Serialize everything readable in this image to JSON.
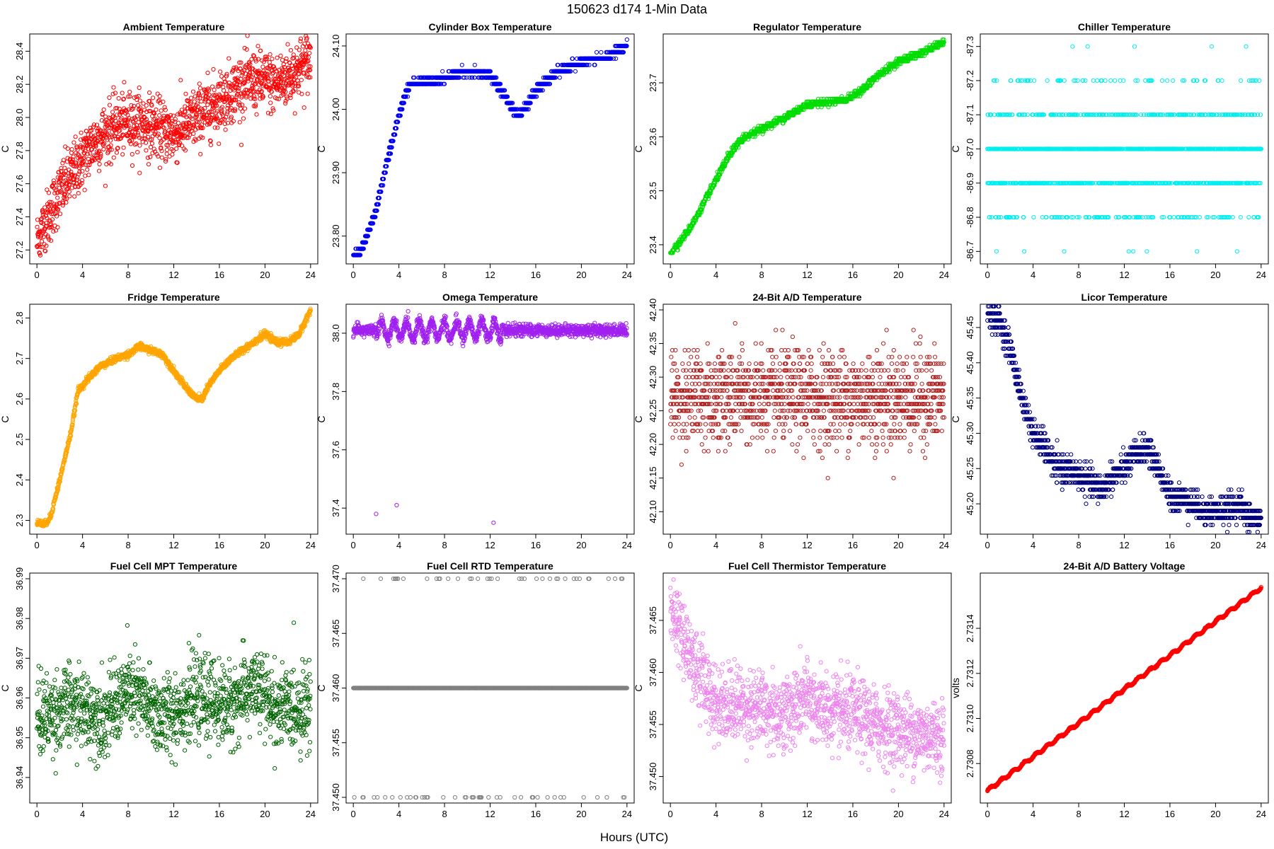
{
  "figure": {
    "title": "150623   d174   1-Min Data",
    "xlabel": "Hours (UTC)"
  },
  "chart_data": [
    {
      "type": "scatter",
      "title": "Ambient Temperature",
      "ylabel": "C",
      "color": "#ff0000",
      "xlim": [
        0,
        24
      ],
      "ylim": [
        27.15,
        28.47
      ],
      "xticks": [
        "0",
        "4",
        "8",
        "12",
        "16",
        "20",
        "24"
      ],
      "yticks": [
        "27.2",
        "27.4",
        "27.6",
        "27.8",
        "28.0",
        "28.2",
        "28.4"
      ],
      "trend": [
        [
          0,
          27.25
        ],
        [
          1,
          27.4
        ],
        [
          2,
          27.55
        ],
        [
          3,
          27.65
        ],
        [
          4,
          27.75
        ],
        [
          5,
          27.85
        ],
        [
          6,
          27.9
        ],
        [
          7,
          27.95
        ],
        [
          8,
          27.97
        ],
        [
          9,
          27.97
        ],
        [
          10,
          27.95
        ],
        [
          11,
          27.92
        ],
        [
          12,
          27.9
        ],
        [
          13,
          27.95
        ],
        [
          14,
          28.0
        ],
        [
          15,
          28.05
        ],
        [
          16,
          28.1
        ],
        [
          17,
          28.15
        ],
        [
          18,
          28.2
        ],
        [
          19,
          28.22
        ],
        [
          20,
          28.22
        ],
        [
          21,
          28.2
        ],
        [
          22,
          28.25
        ],
        [
          23,
          28.3
        ],
        [
          24,
          28.35
        ]
      ],
      "noise": 0.09
    },
    {
      "type": "scatter",
      "title": "Cylinder Box Temperature",
      "ylabel": "C",
      "color": "#0000ee",
      "xlim": [
        0,
        24
      ],
      "ylim": [
        23.765,
        24.11
      ],
      "xticks": [
        "0",
        "4",
        "8",
        "12",
        "16",
        "20",
        "24"
      ],
      "yticks": [
        "23.80",
        "23.90",
        "24.00",
        "24.10"
      ],
      "trend": [
        [
          0,
          23.77
        ],
        [
          0.5,
          23.775
        ],
        [
          1,
          23.79
        ],
        [
          2,
          23.84
        ],
        [
          3,
          23.92
        ],
        [
          4,
          23.99
        ],
        [
          4.5,
          24.02
        ],
        [
          5,
          24.04
        ],
        [
          7,
          24.045
        ],
        [
          8,
          24.05
        ],
        [
          10,
          24.06
        ],
        [
          12,
          24.055
        ],
        [
          13,
          24.03
        ],
        [
          14,
          24.0
        ],
        [
          14.5,
          23.99
        ],
        [
          15,
          24.0
        ],
        [
          16,
          24.03
        ],
        [
          18,
          24.06
        ],
        [
          20,
          24.075
        ],
        [
          22,
          24.08
        ],
        [
          23,
          24.09
        ],
        [
          24,
          24.1
        ]
      ],
      "noise": 0.003,
      "quantum": 0.01
    },
    {
      "type": "scatter",
      "title": "Regulator Temperature",
      "ylabel": "C",
      "color": "#00dd00",
      "xlim": [
        0,
        24
      ],
      "ylim": [
        23.375,
        23.78
      ],
      "xticks": [
        "0",
        "4",
        "8",
        "12",
        "16",
        "20",
        "24"
      ],
      "yticks": [
        "23.4",
        "23.5",
        "23.6",
        "23.7"
      ],
      "trend": [
        [
          0,
          23.385
        ],
        [
          1,
          23.41
        ],
        [
          2,
          23.44
        ],
        [
          3,
          23.48
        ],
        [
          4,
          23.52
        ],
        [
          5,
          23.56
        ],
        [
          6,
          23.59
        ],
        [
          7,
          23.605
        ],
        [
          8,
          23.615
        ],
        [
          10,
          23.635
        ],
        [
          12,
          23.66
        ],
        [
          14,
          23.665
        ],
        [
          15.5,
          23.67
        ],
        [
          16,
          23.675
        ],
        [
          17,
          23.69
        ],
        [
          18,
          23.71
        ],
        [
          19,
          23.725
        ],
        [
          20,
          23.74
        ],
        [
          22,
          23.755
        ],
        [
          23,
          23.765
        ],
        [
          24,
          23.775
        ]
      ],
      "noise": 0.003,
      "quantum": 0.005
    },
    {
      "type": "scatter",
      "title": "Chiller Temperature",
      "ylabel": "C",
      "color": "#00eeee",
      "xlim": [
        0,
        24
      ],
      "ylim": [
        -87.32,
        -86.68
      ],
      "reversed": true,
      "xticks": [
        "0",
        "4",
        "8",
        "12",
        "16",
        "20",
        "24"
      ],
      "yticks": [
        "-86.7",
        "-86.8",
        "-86.9",
        "-87.0",
        "-87.1",
        "-87.2",
        "-87.3"
      ],
      "levels": [
        -86.7,
        -86.8,
        -86.9,
        -87.0,
        -87.1,
        -87.2,
        -87.3
      ],
      "level_weights": [
        0.005,
        0.08,
        0.28,
        0.42,
        0.16,
        0.05,
        0.005
      ]
    },
    {
      "type": "scatter",
      "title": "Fridge Temperature",
      "ylabel": "C",
      "color": "#ffa500",
      "xlim": [
        0,
        24
      ],
      "ylim": [
        2.28,
        2.82
      ],
      "xticks": [
        "0",
        "4",
        "8",
        "12",
        "16",
        "20",
        "24"
      ],
      "yticks": [
        "2.3",
        "2.4",
        "2.5",
        "2.6",
        "2.7",
        "2.8"
      ],
      "trend": [
        [
          0,
          2.295
        ],
        [
          0.7,
          2.29
        ],
        [
          1.2,
          2.31
        ],
        [
          2,
          2.4
        ],
        [
          3,
          2.52
        ],
        [
          3.6,
          2.62
        ],
        [
          4.5,
          2.65
        ],
        [
          5.5,
          2.68
        ],
        [
          7,
          2.7
        ],
        [
          8,
          2.71
        ],
        [
          9,
          2.73
        ],
        [
          10,
          2.72
        ],
        [
          11,
          2.71
        ],
        [
          12,
          2.67
        ],
        [
          13,
          2.63
        ],
        [
          14,
          2.6
        ],
        [
          14.5,
          2.6
        ],
        [
          15,
          2.63
        ],
        [
          16,
          2.67
        ],
        [
          17,
          2.7
        ],
        [
          18,
          2.72
        ],
        [
          19,
          2.74
        ],
        [
          20,
          2.76
        ],
        [
          21,
          2.74
        ],
        [
          22,
          2.74
        ],
        [
          23,
          2.76
        ],
        [
          23.5,
          2.79
        ],
        [
          24,
          2.82
        ]
      ],
      "noise": 0.004
    },
    {
      "type": "scatter",
      "title": "Omega Temperature",
      "ylabel": "C",
      "color": "#a020f0",
      "xlim": [
        0,
        24
      ],
      "ylim": [
        37.33,
        38.08
      ],
      "xticks": [
        "0",
        "4",
        "8",
        "12",
        "16",
        "20",
        "24"
      ],
      "yticks": [
        "37.4",
        "37.6",
        "37.8",
        "38.0"
      ],
      "trend": [
        [
          0,
          38.01
        ],
        [
          24,
          38.01
        ]
      ],
      "osc": {
        "amp": 0.03,
        "period": 1.1,
        "from": 2,
        "to": 13
      },
      "noise": 0.01,
      "outliers": [
        [
          2,
          37.38
        ],
        [
          3.8,
          37.41
        ],
        [
          12.3,
          37.35
        ]
      ]
    },
    {
      "type": "scatter",
      "title": "24-Bit A/D Temperature",
      "ylabel": "C",
      "color": "#b22222",
      "xlim": [
        0,
        24
      ],
      "ylim": [
        42.075,
        42.4
      ],
      "xticks": [
        "0",
        "4",
        "8",
        "12",
        "16",
        "20",
        "24"
      ],
      "yticks": [
        "42.10",
        "42.15",
        "42.20",
        "42.25",
        "42.30",
        "42.35",
        "42.40"
      ],
      "trend": [
        [
          0,
          42.27
        ],
        [
          24,
          42.27
        ]
      ],
      "noise": 0.035,
      "quantum": 0.01
    },
    {
      "type": "scatter",
      "title": "Licor Temperature",
      "ylabel": "C",
      "color": "#000080",
      "xlim": [
        0,
        24
      ],
      "ylim": [
        45.165,
        45.475
      ],
      "xticks": [
        "0",
        "4",
        "8",
        "12",
        "16",
        "20",
        "24"
      ],
      "yticks": [
        "45.20",
        "45.25",
        "45.30",
        "45.35",
        "45.40",
        "45.45"
      ],
      "trend": [
        [
          0,
          45.47
        ],
        [
          1,
          45.46
        ],
        [
          2,
          45.42
        ],
        [
          3,
          45.35
        ],
        [
          4,
          45.3
        ],
        [
          5,
          45.28
        ],
        [
          6,
          45.25
        ],
        [
          7,
          45.25
        ],
        [
          8,
          45.24
        ],
        [
          9,
          45.23
        ],
        [
          10,
          45.22
        ],
        [
          11,
          45.24
        ],
        [
          12,
          45.25
        ],
        [
          13,
          45.27
        ],
        [
          14,
          45.28
        ],
        [
          15,
          45.25
        ],
        [
          16,
          45.21
        ],
        [
          17,
          45.21
        ],
        [
          18,
          45.2
        ],
        [
          19,
          45.19
        ],
        [
          20,
          45.19
        ],
        [
          21,
          45.19
        ],
        [
          22,
          45.2
        ],
        [
          23,
          45.18
        ],
        [
          24,
          45.18
        ]
      ],
      "noise": 0.01,
      "quantum": 0.01
    },
    {
      "type": "scatter",
      "title": "Fuel Cell MPT Temperature",
      "ylabel": "C",
      "color": "#006400",
      "xlim": [
        0,
        24
      ],
      "ylim": [
        36.935,
        36.99
      ],
      "xticks": [
        "0",
        "4",
        "8",
        "12",
        "16",
        "20",
        "24"
      ],
      "yticks": [
        "36.94",
        "36.95",
        "36.96",
        "36.97",
        "36.98",
        "36.99"
      ],
      "trend": [
        [
          0,
          36.955
        ],
        [
          3,
          36.958
        ],
        [
          6,
          36.955
        ],
        [
          8,
          36.962
        ],
        [
          11,
          36.955
        ],
        [
          14,
          36.96
        ],
        [
          17,
          36.958
        ],
        [
          19,
          36.963
        ],
        [
          21,
          36.957
        ],
        [
          24,
          36.958
        ]
      ],
      "noise": 0.005
    },
    {
      "type": "scatter",
      "title": "Fuel Cell RTD Temperature",
      "ylabel": "C",
      "color": "#808080",
      "xlim": [
        0,
        24
      ],
      "ylim": [
        37.45,
        37.47
      ],
      "xticks": [
        "0",
        "4",
        "8",
        "12",
        "16",
        "20",
        "24"
      ],
      "yticks": [
        "37.450",
        "37.455",
        "37.460",
        "37.465",
        "37.470"
      ],
      "levels": [
        37.46,
        37.47,
        37.45
      ],
      "level_weights": [
        0.94,
        0.03,
        0.03
      ]
    },
    {
      "type": "scatter",
      "title": "Fuel Cell Thermistor Temperature",
      "ylabel": "C",
      "color": "#ee82ee",
      "xlim": [
        0,
        24
      ],
      "ylim": [
        37.448,
        37.469
      ],
      "xticks": [
        "0",
        "4",
        "8",
        "12",
        "16",
        "20",
        "24"
      ],
      "yticks": [
        "37.450",
        "37.455",
        "37.460",
        "37.465"
      ],
      "trend": [
        [
          0,
          37.466
        ],
        [
          1,
          37.464
        ],
        [
          2,
          37.461
        ],
        [
          3,
          37.459
        ],
        [
          4,
          37.457
        ],
        [
          6,
          37.457
        ],
        [
          8,
          37.4565
        ],
        [
          10,
          37.456
        ],
        [
          12,
          37.4575
        ],
        [
          14,
          37.456
        ],
        [
          16,
          37.456
        ],
        [
          18,
          37.455
        ],
        [
          20,
          37.4545
        ],
        [
          22,
          37.454
        ],
        [
          24,
          37.454
        ]
      ],
      "noise": 0.0018
    },
    {
      "type": "scatter",
      "title": "24-Bit A/D Battery Voltage",
      "ylabel": "volts",
      "color": "#ff0000",
      "xlim": [
        0,
        24
      ],
      "ylim": [
        2.73065,
        2.73162
      ],
      "xticks": [
        "0",
        "4",
        "8",
        "12",
        "16",
        "20",
        "24"
      ],
      "yticks": [
        "2.7308",
        "2.7310",
        "2.7312",
        "2.7314"
      ],
      "trend": [
        [
          0,
          2.73068
        ],
        [
          24,
          2.73158
        ]
      ],
      "osc": {
        "amp": 6e-06,
        "period": 1.0,
        "from": 0,
        "to": 24
      },
      "noise": 1.5e-06
    }
  ]
}
